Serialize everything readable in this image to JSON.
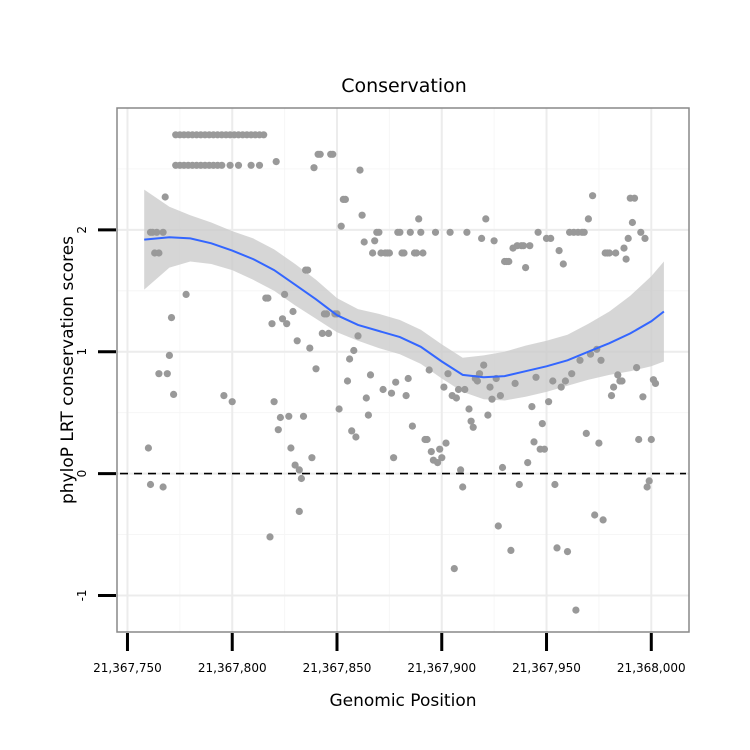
{
  "chart_data": {
    "type": "scatter",
    "title": "Conservation",
    "xlabel": "Genomic Position",
    "ylabel": "phyloP LRT conservation scores",
    "xlim": [
      21367745,
      21368018
    ],
    "ylim": [
      -1.3,
      3.0
    ],
    "x_ticks": [
      21367750,
      21367800,
      21367850,
      21367900,
      21367950,
      21368000
    ],
    "x_tick_labels": [
      "21,367,750",
      "21,367,800",
      "21,367,850",
      "21,367,900",
      "21,367,950",
      "21,368,000"
    ],
    "y_ticks": [
      -1,
      0,
      1,
      2
    ],
    "y_tick_labels": [
      "-1",
      "0",
      "1",
      "2"
    ],
    "grid": true,
    "reference_line": {
      "y": 0,
      "style": "dashed"
    },
    "colors": {
      "points": "#999999",
      "smooth_line": "#3366FF",
      "ribbon": "#cccccc",
      "panel_border": "#888888"
    },
    "points": [
      [
        21367760,
        0.21
      ],
      [
        21367761,
        -0.09
      ],
      [
        21367761,
        1.98
      ],
      [
        21367762,
        1.98
      ],
      [
        21367763,
        1.81
      ],
      [
        21367764,
        1.98
      ],
      [
        21367765,
        1.81
      ],
      [
        21367765,
        0.82
      ],
      [
        21367767,
        -0.11
      ],
      [
        21367767,
        1.98
      ],
      [
        21367768,
        2.27
      ],
      [
        21367769,
        0.82
      ],
      [
        21367770,
        0.97
      ],
      [
        21367771,
        1.28
      ],
      [
        21367772,
        0.65
      ],
      [
        21367773,
        2.53
      ],
      [
        21367773,
        2.78
      ],
      [
        21367775,
        2.53
      ],
      [
        21367775,
        2.78
      ],
      [
        21367777,
        2.53
      ],
      [
        21367777,
        2.78
      ],
      [
        21367778,
        1.47
      ],
      [
        21367779,
        2.53
      ],
      [
        21367779,
        2.78
      ],
      [
        21367781,
        2.53
      ],
      [
        21367781,
        2.78
      ],
      [
        21367783,
        2.53
      ],
      [
        21367783,
        2.78
      ],
      [
        21367785,
        2.53
      ],
      [
        21367785,
        2.78
      ],
      [
        21367787,
        2.53
      ],
      [
        21367787,
        2.78
      ],
      [
        21367789,
        2.53
      ],
      [
        21367789,
        2.78
      ],
      [
        21367791,
        2.53
      ],
      [
        21367791,
        2.78
      ],
      [
        21367793,
        2.53
      ],
      [
        21367793,
        2.78
      ],
      [
        21367795,
        2.53
      ],
      [
        21367795,
        2.78
      ],
      [
        21367796,
        0.64
      ],
      [
        21367797,
        2.78
      ],
      [
        21367799,
        2.53
      ],
      [
        21367799,
        2.78
      ],
      [
        21367800,
        0.59
      ],
      [
        21367801,
        2.78
      ],
      [
        21367803,
        2.53
      ],
      [
        21367803,
        2.78
      ],
      [
        21367805,
        2.78
      ],
      [
        21367807,
        2.78
      ],
      [
        21367809,
        2.53
      ],
      [
        21367809,
        2.78
      ],
      [
        21367811,
        2.78
      ],
      [
        21367813,
        2.53
      ],
      [
        21367813,
        2.78
      ],
      [
        21367815,
        2.78
      ],
      [
        21367816,
        1.44
      ],
      [
        21367817,
        1.44
      ],
      [
        21367818,
        -0.52
      ],
      [
        21367819,
        1.23
      ],
      [
        21367820,
        0.59
      ],
      [
        21367821,
        2.56
      ],
      [
        21367822,
        0.36
      ],
      [
        21367823,
        0.46
      ],
      [
        21367824,
        1.27
      ],
      [
        21367825,
        1.47
      ],
      [
        21367826,
        1.23
      ],
      [
        21367827,
        0.47
      ],
      [
        21367828,
        0.21
      ],
      [
        21367829,
        1.33
      ],
      [
        21367830,
        0.07
      ],
      [
        21367831,
        1.09
      ],
      [
        21367832,
        -0.31
      ],
      [
        21367832,
        0.03
      ],
      [
        21367833,
        -0.04
      ],
      [
        21367834,
        0.47
      ],
      [
        21367835,
        1.67
      ],
      [
        21367836,
        1.67
      ],
      [
        21367837,
        1.03
      ],
      [
        21367838,
        0.13
      ],
      [
        21367839,
        2.51
      ],
      [
        21367840,
        0.86
      ],
      [
        21367841,
        2.62
      ],
      [
        21367842,
        2.62
      ],
      [
        21367843,
        1.15
      ],
      [
        21367844,
        1.31
      ],
      [
        21367845,
        1.31
      ],
      [
        21367846,
        1.15
      ],
      [
        21367847,
        2.62
      ],
      [
        21367848,
        2.62
      ],
      [
        21367849,
        1.31
      ],
      [
        21367850,
        1.31
      ],
      [
        21367851,
        0.53
      ],
      [
        21367852,
        2.03
      ],
      [
        21367853,
        2.25
      ],
      [
        21367854,
        2.25
      ],
      [
        21367855,
        0.76
      ],
      [
        21367856,
        0.94
      ],
      [
        21367857,
        0.35
      ],
      [
        21367858,
        1.01
      ],
      [
        21367859,
        0.3
      ],
      [
        21367860,
        1.13
      ],
      [
        21367861,
        2.49
      ],
      [
        21367862,
        2.12
      ],
      [
        21367863,
        1.9
      ],
      [
        21367864,
        0.62
      ],
      [
        21367865,
        0.48
      ],
      [
        21367866,
        0.81
      ],
      [
        21367867,
        1.81
      ],
      [
        21367868,
        1.91
      ],
      [
        21367869,
        1.98
      ],
      [
        21367870,
        1.98
      ],
      [
        21367871,
        1.81
      ],
      [
        21367872,
        0.69
      ],
      [
        21367873,
        1.81
      ],
      [
        21367874,
        1.81
      ],
      [
        21367875,
        1.81
      ],
      [
        21367876,
        0.66
      ],
      [
        21367877,
        0.13
      ],
      [
        21367878,
        0.75
      ],
      [
        21367879,
        1.98
      ],
      [
        21367880,
        1.98
      ],
      [
        21367881,
        1.81
      ],
      [
        21367882,
        1.81
      ],
      [
        21367883,
        0.64
      ],
      [
        21367884,
        0.78
      ],
      [
        21367885,
        1.98
      ],
      [
        21367886,
        0.39
      ],
      [
        21367887,
        1.81
      ],
      [
        21367888,
        1.81
      ],
      [
        21367889,
        2.09
      ],
      [
        21367890,
        1.98
      ],
      [
        21367891,
        1.81
      ],
      [
        21367892,
        0.28
      ],
      [
        21367893,
        0.28
      ],
      [
        21367894,
        0.85
      ],
      [
        21367895,
        0.18
      ],
      [
        21367896,
        0.11
      ],
      [
        21367897,
        1.98
      ],
      [
        21367898,
        0.09
      ],
      [
        21367899,
        0.2
      ],
      [
        21367900,
        0.13
      ],
      [
        21367901,
        0.71
      ],
      [
        21367902,
        0.25
      ],
      [
        21367903,
        0.82
      ],
      [
        21367904,
        1.98
      ],
      [
        21367905,
        0.64
      ],
      [
        21367906,
        -0.78
      ],
      [
        21367907,
        0.62
      ],
      [
        21367908,
        0.69
      ],
      [
        21367909,
        0.03
      ],
      [
        21367910,
        -0.11
      ],
      [
        21367911,
        0.69
      ],
      [
        21367912,
        1.98
      ],
      [
        21367913,
        0.53
      ],
      [
        21367914,
        0.43
      ],
      [
        21367915,
        0.38
      ],
      [
        21367916,
        0.78
      ],
      [
        21367917,
        0.76
      ],
      [
        21367918,
        0.82
      ],
      [
        21367919,
        1.93
      ],
      [
        21367920,
        0.89
      ],
      [
        21367921,
        2.09
      ],
      [
        21367922,
        0.48
      ],
      [
        21367923,
        0.71
      ],
      [
        21367924,
        0.61
      ],
      [
        21367925,
        1.91
      ],
      [
        21367926,
        0.78
      ],
      [
        21367927,
        -0.43
      ],
      [
        21367928,
        0.64
      ],
      [
        21367929,
        0.05
      ],
      [
        21367930,
        1.74
      ],
      [
        21367931,
        1.74
      ],
      [
        21367932,
        1.74
      ],
      [
        21367933,
        -0.63
      ],
      [
        21367934,
        1.85
      ],
      [
        21367935,
        0.74
      ],
      [
        21367936,
        1.87
      ],
      [
        21367937,
        -0.09
      ],
      [
        21367938,
        1.87
      ],
      [
        21367939,
        1.87
      ],
      [
        21367940,
        1.69
      ],
      [
        21367941,
        0.09
      ],
      [
        21367942,
        1.87
      ],
      [
        21367943,
        0.55
      ],
      [
        21367944,
        0.26
      ],
      [
        21367945,
        0.79
      ],
      [
        21367946,
        1.98
      ],
      [
        21367947,
        0.2
      ],
      [
        21367948,
        0.41
      ],
      [
        21367949,
        0.2
      ],
      [
        21367950,
        1.93
      ],
      [
        21367951,
        0.59
      ],
      [
        21367952,
        1.93
      ],
      [
        21367953,
        0.76
      ],
      [
        21367954,
        -0.09
      ],
      [
        21367955,
        -0.61
      ],
      [
        21367956,
        1.83
      ],
      [
        21367957,
        0.71
      ],
      [
        21367958,
        1.72
      ],
      [
        21367959,
        0.76
      ],
      [
        21367960,
        -0.64
      ],
      [
        21367961,
        1.98
      ],
      [
        21367962,
        0.82
      ],
      [
        21367963,
        1.98
      ],
      [
        21367964,
        -1.12
      ],
      [
        21367965,
        1.98
      ],
      [
        21367966,
        0.93
      ],
      [
        21367967,
        1.98
      ],
      [
        21367968,
        1.98
      ],
      [
        21367969,
        0.33
      ],
      [
        21367970,
        2.09
      ],
      [
        21367971,
        0.98
      ],
      [
        21367972,
        2.28
      ],
      [
        21367973,
        -0.34
      ],
      [
        21367974,
        1.02
      ],
      [
        21367975,
        0.25
      ],
      [
        21367976,
        0.93
      ],
      [
        21367977,
        -0.38
      ],
      [
        21367978,
        1.81
      ],
      [
        21367979,
        1.81
      ],
      [
        21367980,
        1.81
      ],
      [
        21367981,
        0.64
      ],
      [
        21367982,
        0.71
      ],
      [
        21367983,
        1.81
      ],
      [
        21367984,
        0.81
      ],
      [
        21367985,
        0.76
      ],
      [
        21367986,
        0.76
      ],
      [
        21367987,
        1.85
      ],
      [
        21367988,
        1.76
      ],
      [
        21367989,
        1.93
      ],
      [
        21367990,
        2.26
      ],
      [
        21367991,
        2.06
      ],
      [
        21367992,
        2.26
      ],
      [
        21367993,
        0.87
      ],
      [
        21367994,
        0.28
      ],
      [
        21367995,
        1.98
      ],
      [
        21367996,
        0.63
      ],
      [
        21367997,
        1.93
      ],
      [
        21367998,
        -0.11
      ],
      [
        21367999,
        -0.06
      ],
      [
        21368000,
        0.28
      ],
      [
        21368001,
        0.77
      ],
      [
        21368002,
        0.74
      ]
    ],
    "smooth": {
      "x": [
        21367758,
        21367770,
        21367780,
        21367790,
        21367800,
        21367810,
        21367820,
        21367830,
        21367840,
        21367850,
        21367860,
        21367870,
        21367880,
        21367890,
        21367900,
        21367910,
        21367920,
        21367930,
        21367940,
        21367950,
        21367960,
        21367970,
        21367980,
        21367990,
        21368000,
        21368006
      ],
      "y": [
        1.92,
        1.94,
        1.93,
        1.89,
        1.83,
        1.76,
        1.67,
        1.55,
        1.43,
        1.3,
        1.22,
        1.17,
        1.12,
        1.04,
        0.92,
        0.81,
        0.79,
        0.8,
        0.84,
        0.88,
        0.93,
        1.0,
        1.07,
        1.15,
        1.25,
        1.33
      ],
      "ymin": [
        1.51,
        1.69,
        1.74,
        1.72,
        1.67,
        1.59,
        1.5,
        1.38,
        1.27,
        1.16,
        1.09,
        1.03,
        0.98,
        0.9,
        0.78,
        0.67,
        0.61,
        0.6,
        0.63,
        0.67,
        0.72,
        0.77,
        0.81,
        0.84,
        0.88,
        0.92
      ],
      "ymax": [
        2.33,
        2.19,
        2.12,
        2.06,
        1.99,
        1.93,
        1.84,
        1.72,
        1.59,
        1.44,
        1.35,
        1.31,
        1.26,
        1.18,
        1.06,
        0.95,
        0.97,
        1.0,
        1.05,
        1.09,
        1.14,
        1.23,
        1.33,
        1.46,
        1.62,
        1.74
      ]
    }
  }
}
